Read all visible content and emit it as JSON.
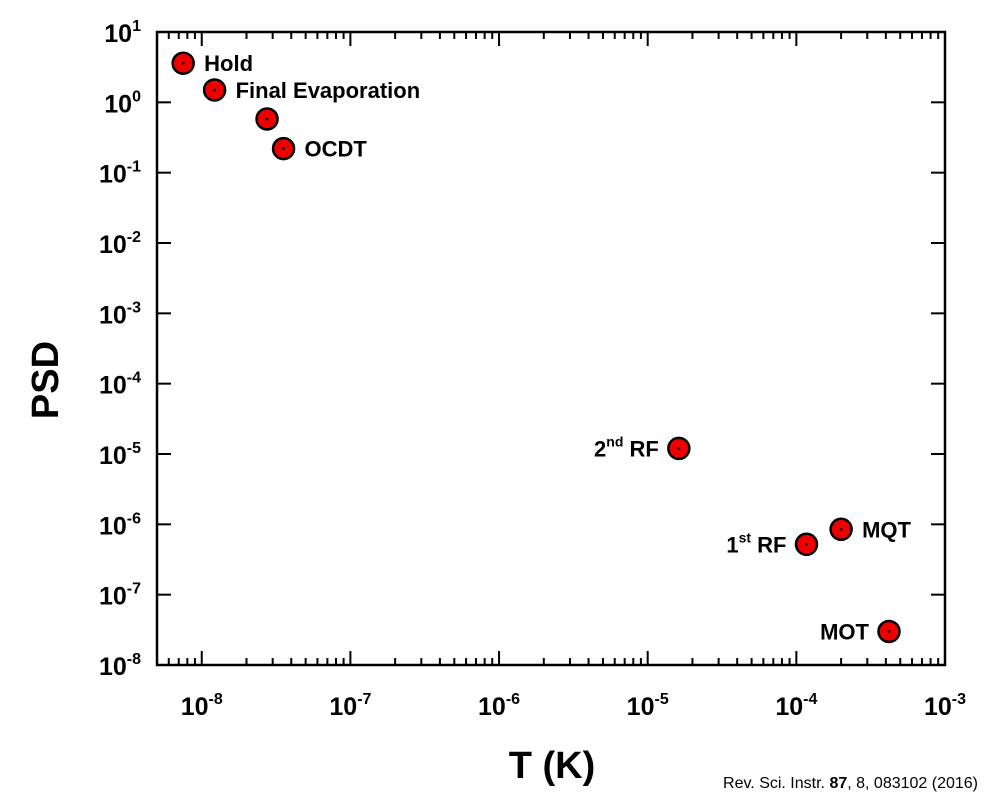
{
  "chart_data": {
    "type": "scatter",
    "xlabel": "T (K)",
    "ylabel": "PSD",
    "xscale": "log",
    "yscale": "log",
    "xlim": [
      5e-09,
      0.001
    ],
    "ylim": [
      1e-08,
      10
    ],
    "x_ticks": [
      {
        "base": "10",
        "exp": "-8"
      },
      {
        "base": "10",
        "exp": "-7"
      },
      {
        "base": "10",
        "exp": "-6"
      },
      {
        "base": "10",
        "exp": "-5"
      },
      {
        "base": "10",
        "exp": "-4"
      },
      {
        "base": "10",
        "exp": "-3"
      }
    ],
    "y_ticks": [
      {
        "base": "10",
        "exp": "1"
      },
      {
        "base": "10",
        "exp": "0"
      },
      {
        "base": "10",
        "exp": "-1"
      },
      {
        "base": "10",
        "exp": "-2"
      },
      {
        "base": "10",
        "exp": "-3"
      },
      {
        "base": "10",
        "exp": "-4"
      },
      {
        "base": "10",
        "exp": "-5"
      },
      {
        "base": "10",
        "exp": "-6"
      },
      {
        "base": "10",
        "exp": "-7"
      },
      {
        "base": "10",
        "exp": "-8"
      }
    ],
    "marker_color": "#ee0000",
    "points": [
      {
        "x": 7.5e-09,
        "y": 3.6,
        "label": "Hold",
        "label_side": "right"
      },
      {
        "x": 1.22e-08,
        "y": 1.5,
        "label": "Final Evaporation",
        "label_side": "right"
      },
      {
        "x": 2.75e-08,
        "y": 0.58,
        "label": "",
        "label_side": "right"
      },
      {
        "x": 3.55e-08,
        "y": 0.22,
        "label": "OCDT",
        "label_side": "right"
      },
      {
        "x": 1.62e-05,
        "y": 1.2e-05,
        "label": "2",
        "label_sup": "nd",
        "label_rest": " RF",
        "label_side": "left"
      },
      {
        "x": 0.000117,
        "y": 5.2e-07,
        "label": "1",
        "label_sup": "st",
        "label_rest": " RF",
        "label_side": "left"
      },
      {
        "x": 0.0002,
        "y": 8.5e-07,
        "label": "MQT",
        "label_side": "right"
      },
      {
        "x": 0.00042,
        "y": 3e-08,
        "label": "MOT",
        "label_side": "left"
      }
    ]
  },
  "citation": {
    "prefix": "Rev. Sci. Instr. ",
    "volume": "87",
    "rest": ", 8, 083102 (2016)"
  }
}
